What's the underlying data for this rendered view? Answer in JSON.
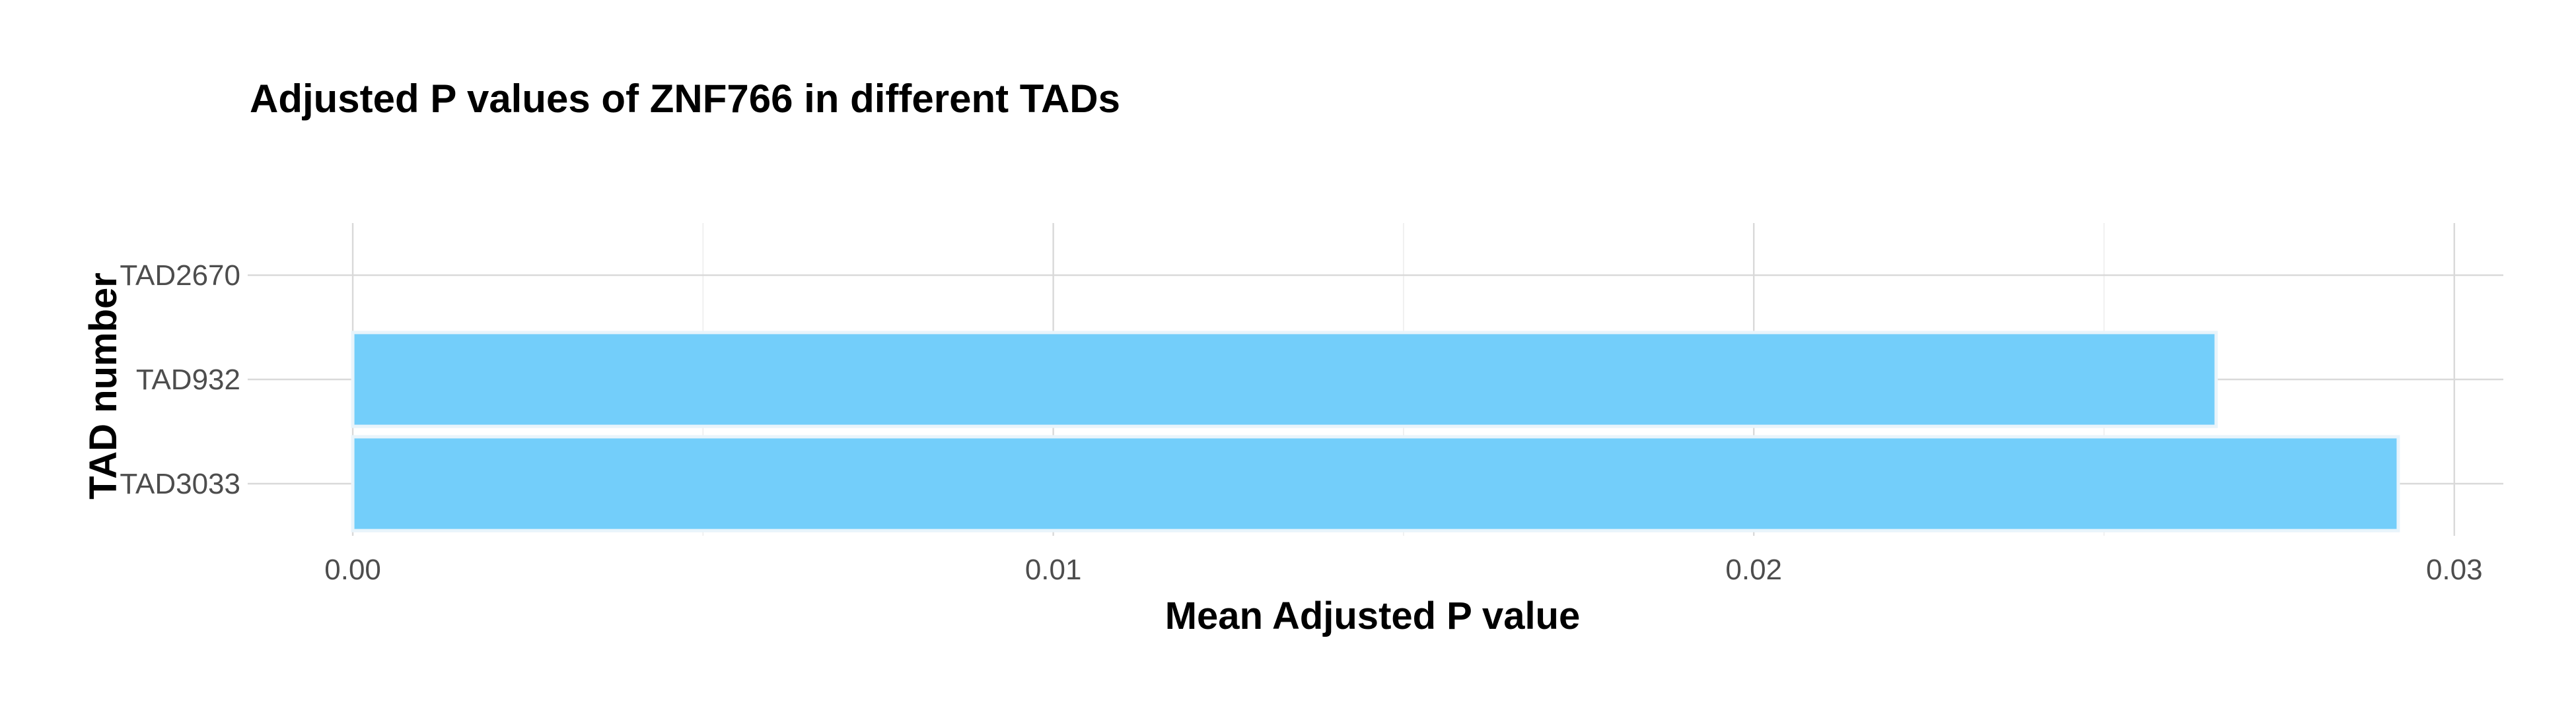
{
  "chart_data": {
    "type": "bar",
    "orientation": "horizontal",
    "title": "Adjusted P values of ZNF766 in different TADs",
    "xlabel": "Mean Adjusted P value",
    "ylabel": "TAD number",
    "categories": [
      "TAD2670",
      "TAD932",
      "TAD3033"
    ],
    "values": [
      null,
      0.0266,
      0.0292
    ],
    "xlim": [
      -0.0015,
      0.0307
    ],
    "x_ticks": [
      0.0,
      0.01,
      0.02,
      0.03
    ],
    "x_tick_labels": [
      "0.00",
      "0.01",
      "0.02",
      "0.03"
    ],
    "grid": true,
    "legend": "none",
    "bar_color": "#73CEFA",
    "bar_outline_color": "#E8F4FB"
  }
}
